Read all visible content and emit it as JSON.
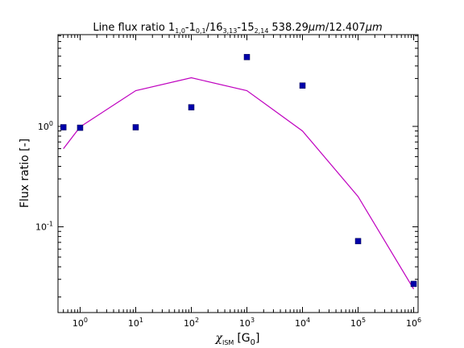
{
  "chart_data": {
    "type": "scatter",
    "title": {
      "prefix": "Line flux ratio 1",
      "sub1": "1,0",
      "part2": "-1",
      "sub2": "0,1",
      "part3": "/16",
      "sub3": "3,13",
      "part4": "-15",
      "sub4": "2,14",
      "wl1": "538.29",
      "unit1": "μm",
      "slash": "/",
      "wl2": "12.407",
      "unit2": "μm"
    },
    "xlabel": {
      "chi": "χ",
      "sub": "ISM",
      "bracket_open": "[G",
      "g_sub": "0",
      "bracket_close": "]"
    },
    "ylabel": "Flux ratio [-]",
    "x_scale": "log",
    "y_scale": "log",
    "xlim": [
      0.4,
      1200000
    ],
    "ylim": [
      0.014,
      8.2
    ],
    "x_ticks": [
      {
        "value": 1,
        "base": "10",
        "exp": "0"
      },
      {
        "value": 10,
        "base": "10",
        "exp": "1"
      },
      {
        "value": 100,
        "base": "10",
        "exp": "2"
      },
      {
        "value": 1000,
        "base": "10",
        "exp": "3"
      },
      {
        "value": 10000,
        "base": "10",
        "exp": "4"
      },
      {
        "value": 100000,
        "base": "10",
        "exp": "5"
      },
      {
        "value": 1000000,
        "base": "10",
        "exp": "6"
      }
    ],
    "y_ticks": [
      {
        "value": 0.1,
        "base": "10",
        "exp": "-1"
      },
      {
        "value": 1,
        "base": "10",
        "exp": "0"
      }
    ],
    "grid": false,
    "series": [
      {
        "type": "scatter",
        "marker": "square",
        "color": "#0000aa",
        "points": [
          {
            "x": 0.5,
            "y": 0.98
          },
          {
            "x": 1,
            "y": 0.97
          },
          {
            "x": 10,
            "y": 0.98
          },
          {
            "x": 100,
            "y": 1.55
          },
          {
            "x": 1000,
            "y": 4.9
          },
          {
            "x": 10000,
            "y": 2.55
          },
          {
            "x": 100000,
            "y": 0.072
          },
          {
            "x": 1000000,
            "y": 0.027
          }
        ]
      },
      {
        "type": "line",
        "color": "#bf00bf",
        "points": [
          {
            "x": 0.5,
            "y": 0.6
          },
          {
            "x": 1,
            "y": 0.99
          },
          {
            "x": 10,
            "y": 2.27
          },
          {
            "x": 100,
            "y": 3.05
          },
          {
            "x": 1000,
            "y": 2.27
          },
          {
            "x": 10000,
            "y": 0.9
          },
          {
            "x": 100000,
            "y": 0.2
          },
          {
            "x": 1000000,
            "y": 0.024
          }
        ]
      }
    ]
  }
}
